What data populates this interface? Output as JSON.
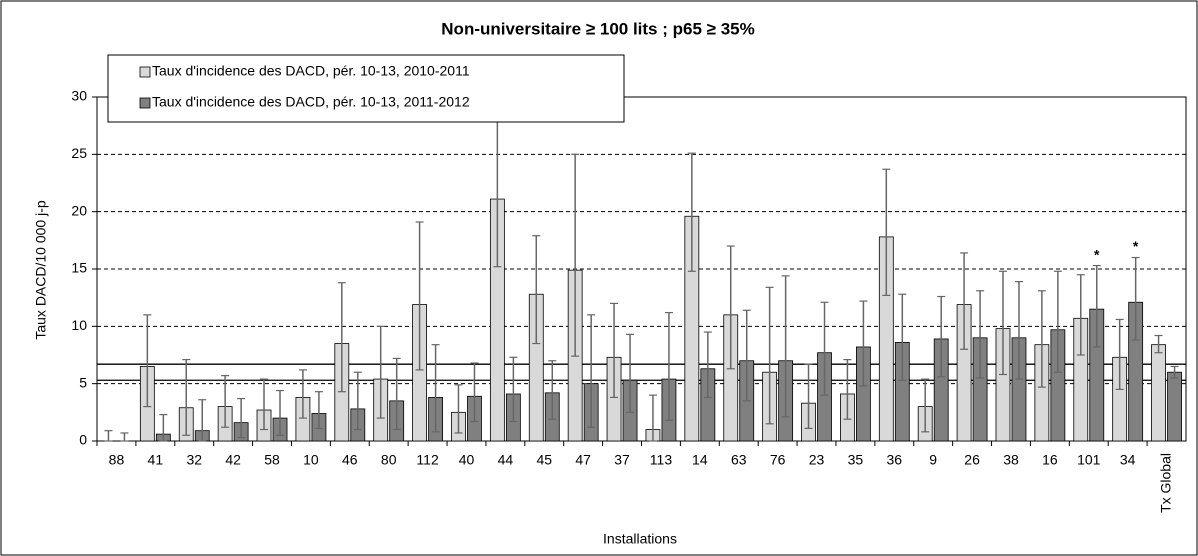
{
  "chart_data": {
    "type": "bar",
    "title": "Non-universitaire ≥ 100 lits ; p65 ≥ 35%",
    "xlabel": "Installations",
    "ylabel": "Taux DACD/10 000 j-p",
    "categories": [
      "88",
      "41",
      "32",
      "42",
      "58",
      "10",
      "46",
      "80",
      "112",
      "40",
      "44",
      "45",
      "47",
      "37",
      "113",
      "14",
      "63",
      "76",
      "23",
      "35",
      "36",
      "9",
      "26",
      "38",
      "16",
      "101",
      "34",
      "Tx Global"
    ],
    "series": [
      {
        "name": "Taux d'incidence des DACD, pér. 10-13, 2010-2011",
        "color": "#d9d9d9",
        "values": [
          0,
          6.5,
          2.9,
          3.0,
          2.7,
          3.8,
          8.5,
          5.4,
          11.9,
          2.5,
          21.1,
          12.8,
          14.9,
          7.3,
          1.0,
          19.6,
          11.0,
          6.0,
          3.3,
          4.1,
          17.8,
          3.0,
          11.9,
          9.8,
          8.4,
          10.7,
          7.3,
          8.4
        ],
        "err_low": [
          0,
          3.0,
          0.5,
          1.2,
          1.0,
          2.0,
          4.3,
          2.0,
          6.2,
          0.7,
          15.2,
          8.5,
          7.4,
          3.8,
          0,
          14.8,
          6.3,
          1.5,
          1.1,
          1.9,
          12.7,
          0.8,
          8.0,
          5.8,
          4.7,
          7.5,
          4.5,
          7.7
        ],
        "err_high": [
          0.9,
          11.0,
          7.1,
          5.7,
          5.4,
          6.2,
          13.8,
          10.0,
          19.1,
          4.9,
          27.9,
          17.9,
          25.0,
          12.0,
          4.0,
          25.1,
          17.0,
          13.4,
          6.7,
          7.1,
          23.7,
          5.4,
          16.4,
          14.8,
          13.1,
          14.5,
          10.6,
          9.2
        ],
        "markers": [
          null,
          null,
          null,
          null,
          null,
          null,
          null,
          null,
          null,
          null,
          null,
          null,
          null,
          null,
          null,
          null,
          null,
          null,
          null,
          null,
          null,
          null,
          null,
          null,
          null,
          null,
          null,
          null
        ]
      },
      {
        "name": "Taux d'incidence des DACD, pér. 10-13, 2011-2012",
        "color": "#808080",
        "values": [
          0,
          0.6,
          0.9,
          1.6,
          2.0,
          2.4,
          2.8,
          3.5,
          3.8,
          3.9,
          4.1,
          4.2,
          5.0,
          5.3,
          5.4,
          6.3,
          7.0,
          7.0,
          7.7,
          8.2,
          8.6,
          8.9,
          9.0,
          9.0,
          9.7,
          11.5,
          12.1,
          6.0
        ],
        "err_low": [
          0,
          0,
          0,
          0.3,
          0.5,
          1.1,
          1.0,
          1.0,
          0.8,
          1.7,
          1.7,
          1.9,
          1.2,
          2.5,
          1.8,
          3.8,
          3.5,
          2.1,
          4.0,
          4.8,
          5.3,
          5.6,
          5.5,
          5.4,
          6.0,
          8.2,
          8.8,
          5.5
        ],
        "err_high": [
          0.7,
          2.3,
          3.6,
          3.7,
          4.4,
          4.3,
          6.0,
          7.2,
          8.4,
          6.8,
          7.3,
          7.0,
          11.0,
          9.3,
          11.2,
          9.5,
          11.4,
          14.4,
          12.1,
          12.2,
          12.8,
          12.6,
          13.1,
          13.9,
          14.8,
          15.3,
          16.0,
          6.5
        ],
        "markers": [
          null,
          null,
          null,
          null,
          null,
          null,
          null,
          null,
          null,
          null,
          null,
          null,
          null,
          null,
          null,
          null,
          null,
          null,
          null,
          null,
          null,
          null,
          null,
          null,
          null,
          "*",
          "*",
          null
        ]
      }
    ],
    "reference_lines": [
      5.3,
      6.7
    ],
    "ylim": [
      0,
      30
    ],
    "yticks": [
      0,
      5,
      10,
      15,
      20,
      25,
      30
    ],
    "grid": true
  }
}
